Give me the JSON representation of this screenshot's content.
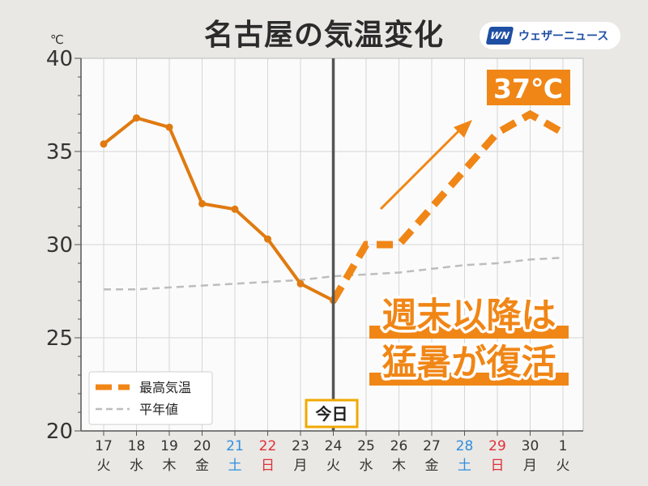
{
  "header": {
    "title": "名古屋の気温変化",
    "logo_mark": "WN",
    "logo_text": "ウェザーニュース"
  },
  "colors": {
    "series_max": "#f08616",
    "series_max_dark": "#e07a10",
    "normal": "#bdbdbd",
    "today_line": "#555555",
    "today_box_border": "#f0a900",
    "saturday": "#2f8fe0",
    "sunday": "#e0303a",
    "weekday": "#333333"
  },
  "annotations": {
    "today_label": "今日",
    "peak_label": "37℃",
    "message_line1": "週末以降は",
    "message_line2": "猛暑が復活"
  },
  "chart_data": {
    "type": "line",
    "ylabel": "℃",
    "ylim": [
      20,
      40
    ],
    "yticks": [
      20,
      25,
      30,
      35,
      40
    ],
    "grid": true,
    "legend_position": "bottom-left",
    "x": [
      {
        "date": "17",
        "dow": "火",
        "kind": "weekday"
      },
      {
        "date": "18",
        "dow": "水",
        "kind": "weekday"
      },
      {
        "date": "19",
        "dow": "木",
        "kind": "weekday"
      },
      {
        "date": "20",
        "dow": "金",
        "kind": "weekday"
      },
      {
        "date": "21",
        "dow": "土",
        "kind": "saturday"
      },
      {
        "date": "22",
        "dow": "日",
        "kind": "sunday"
      },
      {
        "date": "23",
        "dow": "月",
        "kind": "weekday"
      },
      {
        "date": "24",
        "dow": "火",
        "kind": "weekday"
      },
      {
        "date": "25",
        "dow": "水",
        "kind": "weekday"
      },
      {
        "date": "26",
        "dow": "木",
        "kind": "weekday"
      },
      {
        "date": "27",
        "dow": "金",
        "kind": "weekday"
      },
      {
        "date": "28",
        "dow": "土",
        "kind": "saturday"
      },
      {
        "date": "29",
        "dow": "日",
        "kind": "sunday"
      },
      {
        "date": "30",
        "dow": "月",
        "kind": "weekday"
      },
      {
        "date": "1",
        "dow": "火",
        "kind": "weekday"
      }
    ],
    "today_index": 7,
    "series": [
      {
        "name": "最高気温",
        "observed": [
          35.4,
          36.8,
          36.3,
          32.2,
          31.9,
          30.3,
          27.9,
          27.0
        ],
        "forecast": [
          27.0,
          30.0,
          30.0,
          32.0,
          34.0,
          36.0,
          37.0,
          36.0
        ]
      },
      {
        "name": "平年値",
        "values": [
          27.6,
          27.6,
          27.7,
          27.8,
          27.9,
          28.0,
          28.1,
          28.3,
          28.4,
          28.5,
          28.7,
          28.9,
          29.0,
          29.2,
          29.3
        ]
      }
    ]
  }
}
